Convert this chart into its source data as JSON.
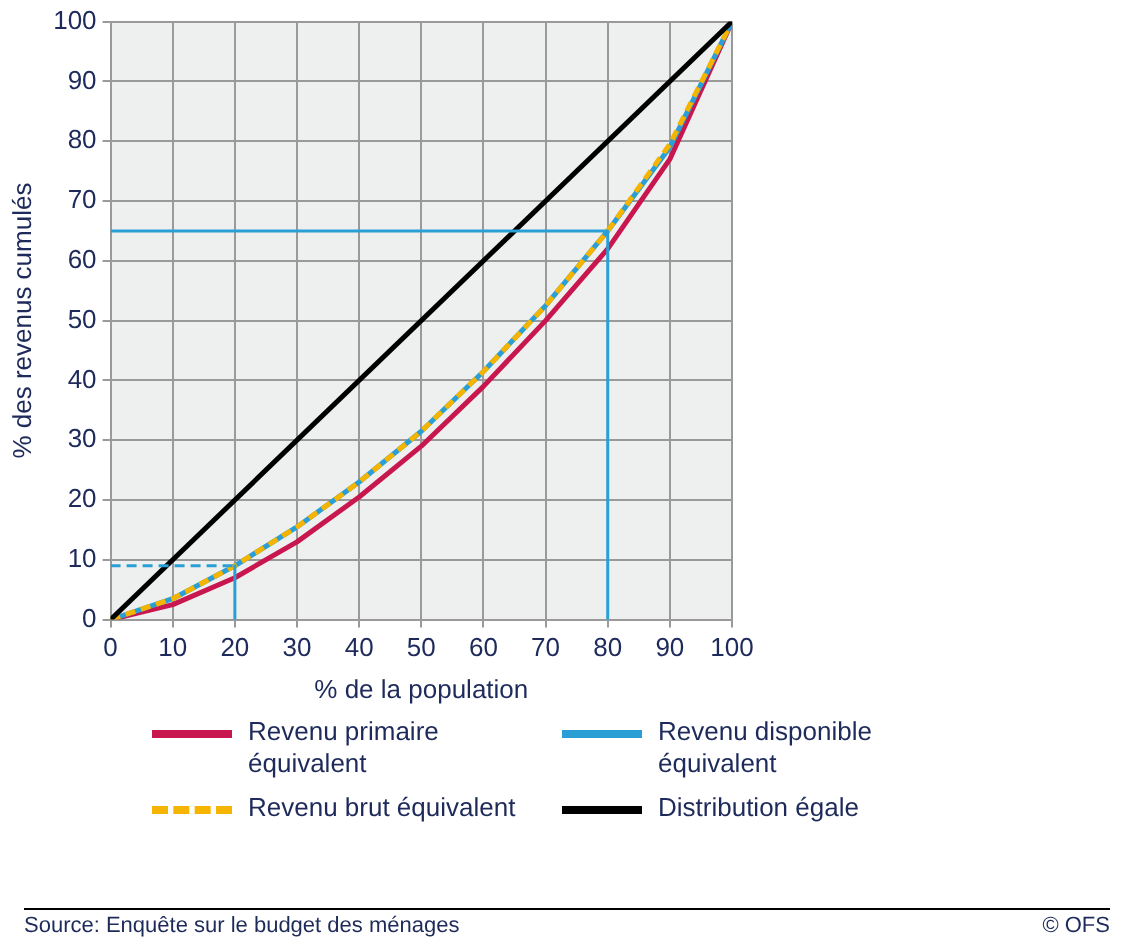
{
  "chart_data": {
    "type": "line",
    "xlabel": "% de la population",
    "ylabel": "% des revenus cumulés",
    "x": [
      0,
      10,
      20,
      30,
      40,
      50,
      60,
      70,
      80,
      90,
      100
    ],
    "series": [
      {
        "name": "Revenu primaire équivalent",
        "color": "#c8174f",
        "values": [
          0,
          2.5,
          7,
          13,
          20.5,
          29,
          39,
          50,
          62,
          77,
          100
        ]
      },
      {
        "name": "Revenu disponible équivalent",
        "color": "#2a9fd6",
        "values": [
          0,
          3.5,
          9,
          15.5,
          23,
          31.5,
          41.5,
          52.5,
          65,
          79,
          100
        ]
      },
      {
        "name": "Revenu brut équivalent",
        "color": "#f5b400",
        "line_style": "dashed",
        "values": [
          0,
          3.5,
          9,
          15.5,
          23,
          31.5,
          41.5,
          52.5,
          65,
          79.5,
          100
        ]
      },
      {
        "name": "Distribution égale",
        "color": "#000000",
        "x": [
          0,
          100
        ],
        "values": [
          0,
          100
        ]
      },
      {
        "color": "#2a9fd6",
        "x": [
          0,
          80,
          80
        ],
        "values": [
          65,
          65,
          0
        ]
      },
      {
        "color": "#2a9fd6",
        "line_style": "dashed",
        "x": [
          0,
          20
        ],
        "values": [
          9,
          9
        ]
      },
      {
        "color": "#2a9fd6",
        "x": [
          20,
          20
        ],
        "values": [
          9,
          0
        ]
      }
    ],
    "xlim": [
      0,
      100
    ],
    "xticks": [
      0,
      10,
      20,
      30,
      40,
      50,
      60,
      70,
      80,
      90,
      100
    ],
    "ylim": [
      0,
      100
    ],
    "yticks": [
      0,
      10,
      20,
      30,
      40,
      50,
      60,
      70,
      80,
      90,
      100
    ],
    "grid": true,
    "legend": "bottom",
    "marker": "none",
    "annotations": [
      "Source: Enquête sur le budget des ménages",
      "© OFS"
    ]
  }
}
